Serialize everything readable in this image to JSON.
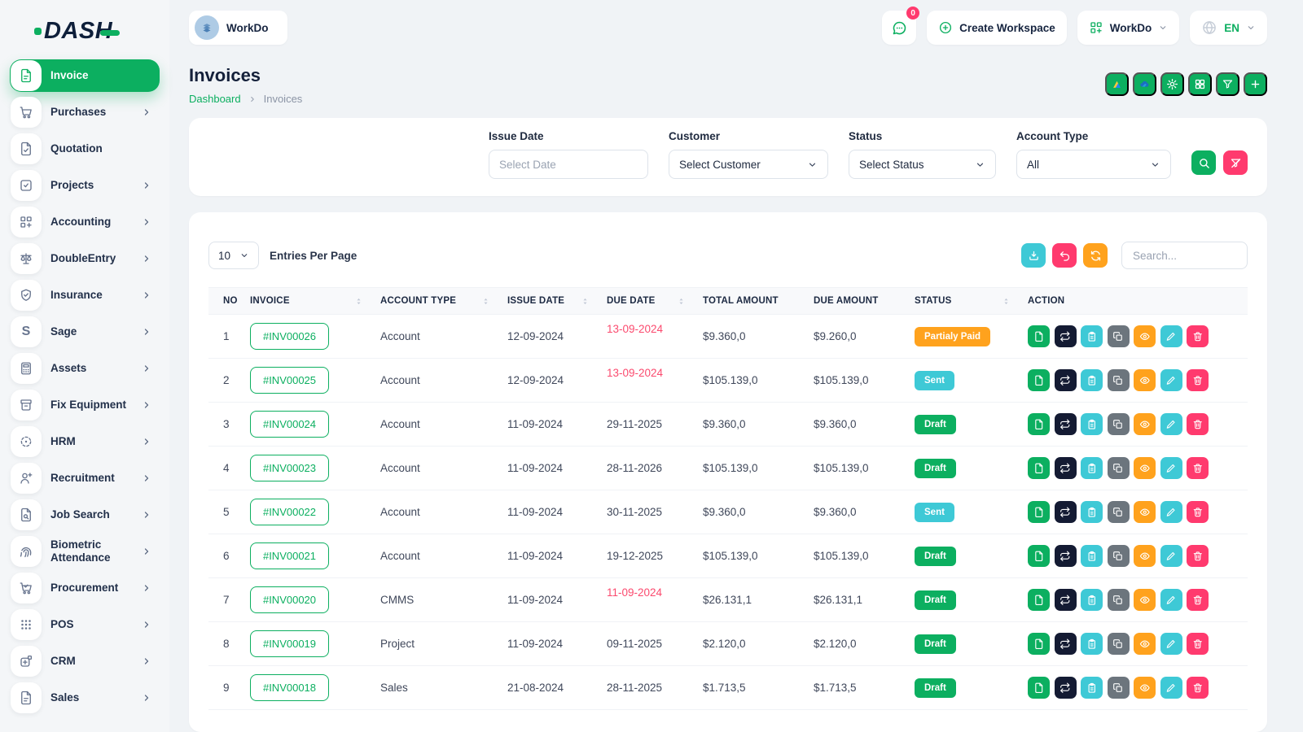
{
  "brand": {
    "logo_text": "DASH"
  },
  "topbar": {
    "workspace_label": "WorkDo",
    "messages_badge": "0",
    "create_workspace_label": "Create Workspace",
    "workdo_menu_label": "WorkDo",
    "language": "EN"
  },
  "sidebar": {
    "items": [
      {
        "label": "Invoice",
        "icon": "invoice",
        "active": true,
        "chevron": false
      },
      {
        "label": "Purchases",
        "icon": "cart",
        "active": false,
        "chevron": true
      },
      {
        "label": "Quotation",
        "icon": "quotation",
        "active": false,
        "chevron": false
      },
      {
        "label": "Projects",
        "icon": "projects",
        "active": false,
        "chevron": true
      },
      {
        "label": "Accounting",
        "icon": "grid-plus",
        "active": false,
        "chevron": true
      },
      {
        "label": "DoubleEntry",
        "icon": "scales",
        "active": false,
        "chevron": true
      },
      {
        "label": "Insurance",
        "icon": "shield",
        "active": false,
        "chevron": true
      },
      {
        "label": "Sage",
        "icon": "sage",
        "active": false,
        "chevron": true
      },
      {
        "label": "Assets",
        "icon": "calculator",
        "active": false,
        "chevron": true
      },
      {
        "label": "Fix Equipment",
        "icon": "archive",
        "active": false,
        "chevron": true
      },
      {
        "label": "HRM",
        "icon": "crosshair",
        "active": false,
        "chevron": true
      },
      {
        "label": "Recruitment",
        "icon": "user-plus",
        "active": false,
        "chevron": true
      },
      {
        "label": "Job Search",
        "icon": "file-search",
        "active": false,
        "chevron": true
      },
      {
        "label": "Biometric Attendance",
        "icon": "fingerprint",
        "active": false,
        "chevron": true
      },
      {
        "label": "Procurement",
        "icon": "cart-check",
        "active": false,
        "chevron": true
      },
      {
        "label": "POS",
        "icon": "dots-grid",
        "active": false,
        "chevron": true
      },
      {
        "label": "CRM",
        "icon": "puzzle",
        "active": false,
        "chevron": true
      },
      {
        "label": "Sales",
        "icon": "sales",
        "active": false,
        "chevron": true
      }
    ]
  },
  "page": {
    "title": "Invoices",
    "breadcrumb_link": "Dashboard",
    "breadcrumb_current": "Invoices",
    "quick_actions": [
      {
        "name": "google-drive-button",
        "icon": "gdrive"
      },
      {
        "name": "onedrive-button",
        "icon": "onedrive"
      },
      {
        "name": "settings-button",
        "icon": "gear"
      },
      {
        "name": "grid-view-button",
        "icon": "grid4"
      },
      {
        "name": "filter-button",
        "icon": "funnel"
      },
      {
        "name": "create-invoice-button",
        "icon": "plus"
      }
    ]
  },
  "filters": {
    "issue_date": {
      "label": "Issue Date",
      "placeholder": "Select Date"
    },
    "customer": {
      "label": "Customer",
      "value": "Select Customer"
    },
    "status": {
      "label": "Status",
      "value": "Select Status"
    },
    "account_type": {
      "label": "Account Type",
      "value": "All"
    }
  },
  "table_controls": {
    "entries_per_page_value": "10",
    "entries_per_page_label": "Entries Per Page",
    "search_placeholder": "Search..."
  },
  "table": {
    "columns": [
      {
        "label": "NO",
        "sortable": false,
        "key": "no"
      },
      {
        "label": "INVOICE",
        "sortable": true,
        "key": "invoice"
      },
      {
        "label": "ACCOUNT TYPE",
        "sortable": true,
        "key": "account_type"
      },
      {
        "label": "ISSUE DATE",
        "sortable": true,
        "key": "issue_date"
      },
      {
        "label": "DUE DATE",
        "sortable": true,
        "key": "due_date"
      },
      {
        "label": "TOTAL AMOUNT",
        "sortable": false,
        "key": "total_amount"
      },
      {
        "label": "DUE AMOUNT",
        "sortable": false,
        "key": "due_amount"
      },
      {
        "label": "STATUS",
        "sortable": true,
        "key": "status"
      },
      {
        "label": "ACTION",
        "sortable": false,
        "key": "action"
      }
    ],
    "action_buttons": [
      {
        "name": "invoice-file-button",
        "icon": "file",
        "color": "success"
      },
      {
        "name": "convert-button",
        "icon": "convert",
        "color": "dark"
      },
      {
        "name": "duplicate-button",
        "icon": "clipboard",
        "color": "info"
      },
      {
        "name": "copy-link-button",
        "icon": "copy",
        "color": "secondary"
      },
      {
        "name": "view-button",
        "icon": "eye",
        "color": "warning"
      },
      {
        "name": "edit-button",
        "icon": "pencil",
        "color": "info"
      },
      {
        "name": "delete-button",
        "icon": "trash",
        "color": "danger"
      }
    ],
    "rows": [
      {
        "no": "1",
        "invoice": "#INV00026",
        "account_type": "Account",
        "issue_date": "12-09-2024",
        "due_date": "13-09-2024",
        "due_overdue": true,
        "total_amount": "$9.360,0",
        "due_amount": "$9.260,0",
        "status": "Partialy Paid",
        "status_type": "warning"
      },
      {
        "no": "2",
        "invoice": "#INV00025",
        "account_type": "Account",
        "issue_date": "12-09-2024",
        "due_date": "13-09-2024",
        "due_overdue": true,
        "total_amount": "$105.139,0",
        "due_amount": "$105.139,0",
        "status": "Sent",
        "status_type": "info"
      },
      {
        "no": "3",
        "invoice": "#INV00024",
        "account_type": "Account",
        "issue_date": "11-09-2024",
        "due_date": "29-11-2025",
        "due_overdue": false,
        "total_amount": "$9.360,0",
        "due_amount": "$9.360,0",
        "status": "Draft",
        "status_type": "success"
      },
      {
        "no": "4",
        "invoice": "#INV00023",
        "account_type": "Account",
        "issue_date": "11-09-2024",
        "due_date": "28-11-2026",
        "due_overdue": false,
        "total_amount": "$105.139,0",
        "due_amount": "$105.139,0",
        "status": "Draft",
        "status_type": "success"
      },
      {
        "no": "5",
        "invoice": "#INV00022",
        "account_type": "Account",
        "issue_date": "11-09-2024",
        "due_date": "30-11-2025",
        "due_overdue": false,
        "total_amount": "$9.360,0",
        "due_amount": "$9.360,0",
        "status": "Sent",
        "status_type": "info"
      },
      {
        "no": "6",
        "invoice": "#INV00021",
        "account_type": "Account",
        "issue_date": "11-09-2024",
        "due_date": "19-12-2025",
        "due_overdue": false,
        "total_amount": "$105.139,0",
        "due_amount": "$105.139,0",
        "status": "Draft",
        "status_type": "success"
      },
      {
        "no": "7",
        "invoice": "#INV00020",
        "account_type": "CMMS",
        "issue_date": "11-09-2024",
        "due_date": "11-09-2024",
        "due_overdue": true,
        "total_amount": "$26.131,1",
        "due_amount": "$26.131,1",
        "status": "Draft",
        "status_type": "success"
      },
      {
        "no": "8",
        "invoice": "#INV00019",
        "account_type": "Project",
        "issue_date": "11-09-2024",
        "due_date": "09-11-2025",
        "due_overdue": false,
        "total_amount": "$2.120,0",
        "due_amount": "$2.120,0",
        "status": "Draft",
        "status_type": "success"
      },
      {
        "no": "9",
        "invoice": "#INV00018",
        "account_type": "Sales",
        "issue_date": "21-08-2024",
        "due_date": "28-11-2025",
        "due_overdue": false,
        "total_amount": "$1.713,5",
        "due_amount": "$1.713,5",
        "status": "Draft",
        "status_type": "success"
      }
    ]
  },
  "colors": {
    "primary": "#0CAF60",
    "info": "#3EC9D6",
    "warning": "#FFA21D",
    "danger": "#FF3A6E",
    "dark": "#141B33",
    "secondary": "#6C757D"
  }
}
